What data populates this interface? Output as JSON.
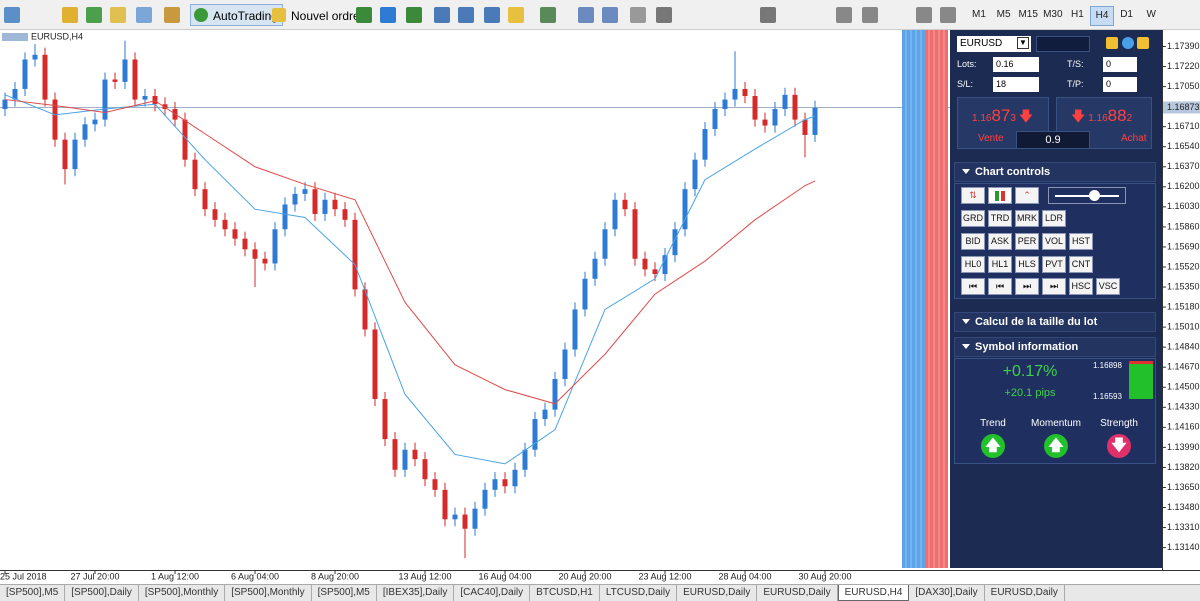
{
  "toolbar": {
    "buttons": [
      "AutoTrading",
      "Nouvel ordre"
    ],
    "timeframes": [
      {
        "label": "M1"
      },
      {
        "label": "M5"
      },
      {
        "label": "M15"
      },
      {
        "label": "M30"
      },
      {
        "label": "H1"
      },
      {
        "label": "H4",
        "active": true
      },
      {
        "label": "D1"
      },
      {
        "label": "W"
      }
    ]
  },
  "chart_data": {
    "type": "candlestick",
    "label": "EURUSD,H4",
    "categories": [
      "25 Jul 2018",
      null,
      null,
      null,
      null,
      null,
      null,
      null,
      null,
      "27 Jul 20:00",
      null,
      null,
      null,
      null,
      null,
      null,
      null,
      "1 Aug 12:00",
      null,
      null,
      null,
      null,
      null,
      null,
      null,
      "6 Aug 04:00",
      null,
      null,
      null,
      null,
      null,
      null,
      null,
      "8 Aug 20:00",
      null,
      null,
      null,
      null,
      null,
      null,
      null,
      null,
      "13 Aug 12:00",
      null,
      null,
      null,
      null,
      null,
      null,
      null,
      "16 Aug 04:00",
      null,
      null,
      null,
      null,
      null,
      null,
      null,
      "20 Aug 20:00",
      null,
      null,
      null,
      null,
      null,
      null,
      null,
      "23 Aug 12:00",
      null,
      null,
      null,
      null,
      null,
      null,
      null,
      "28 Aug 04:00",
      null,
      null,
      null,
      null,
      null,
      null,
      null,
      "30 Aug 20:00"
    ],
    "open": [
      1.1686,
      1.1694,
      1.1703,
      1.1728,
      1.1732,
      1.1694,
      1.166,
      1.1635,
      1.166,
      1.1673,
      1.1677,
      1.1711,
      1.1709,
      1.1728,
      1.1694,
      1.1697,
      1.169,
      1.1686,
      1.1677,
      1.1643,
      1.1618,
      1.1601,
      1.1592,
      1.1584,
      1.1576,
      1.1567,
      1.1559,
      1.1555,
      1.1584,
      1.1605,
      1.1614,
      1.1618,
      1.1597,
      1.1609,
      1.1601,
      1.1592,
      1.1533,
      1.1499,
      1.144,
      1.1406,
      1.138,
      1.1397,
      1.1389,
      1.1372,
      1.1363,
      1.1338,
      1.1342,
      1.133,
      1.1347,
      1.1363,
      1.1372,
      1.1366,
      1.138,
      1.1397,
      1.1423,
      1.1431,
      1.1457,
      1.1482,
      1.1516,
      1.1542,
      1.1559,
      1.1584,
      1.1609,
      1.1601,
      1.1559,
      1.155,
      1.1546,
      1.1562,
      1.1584,
      1.1618,
      1.1643,
      1.1669,
      1.1686,
      1.1694,
      1.1703,
      1.1697,
      1.1677,
      1.1672,
      1.1686,
      1.1698,
      1.1677,
      1.1664,
      null
    ],
    "high": [
      1.17,
      1.1709,
      1.1734,
      1.1741,
      1.1738,
      1.17,
      1.1666,
      1.1666,
      1.1679,
      1.1683,
      1.1717,
      1.1717,
      1.1744,
      1.1734,
      1.1703,
      1.1703,
      1.1696,
      1.1692,
      1.1683,
      1.1649,
      1.1624,
      1.1607,
      1.1598,
      1.159,
      1.1582,
      1.1573,
      1.1565,
      1.159,
      1.1611,
      1.162,
      1.1624,
      1.1624,
      1.1615,
      1.1615,
      1.1607,
      1.1598,
      1.1539,
      1.1505,
      1.1446,
      1.1412,
      1.1403,
      1.1403,
      1.1395,
      1.1378,
      1.1369,
      1.1348,
      1.1348,
      1.1353,
      1.1369,
      1.1378,
      1.1378,
      1.1386,
      1.1403,
      1.1429,
      1.1437,
      1.1463,
      1.1488,
      1.1522,
      1.1548,
      1.1565,
      1.159,
      1.1615,
      1.1615,
      1.1607,
      1.1565,
      1.1556,
      1.1568,
      1.159,
      1.1624,
      1.1649,
      1.1675,
      1.1692,
      1.17,
      1.1735,
      1.1709,
      1.1703,
      1.1683,
      1.1692,
      1.1704,
      1.1704,
      1.1683,
      1.1693,
      null
    ],
    "low": [
      1.168,
      1.1688,
      1.1697,
      1.1722,
      1.1688,
      1.1654,
      1.1622,
      1.1629,
      1.1654,
      1.1667,
      1.1671,
      1.1703,
      1.1703,
      1.1688,
      1.1688,
      1.1684,
      1.168,
      1.1671,
      1.1637,
      1.1612,
      1.1595,
      1.1586,
      1.1578,
      1.157,
      1.1561,
      1.1535,
      1.1549,
      1.1549,
      1.1578,
      1.1599,
      1.1608,
      1.1591,
      1.1591,
      1.1595,
      1.1586,
      1.1527,
      1.1493,
      1.1434,
      1.14,
      1.1374,
      1.1374,
      1.1383,
      1.1366,
      1.1357,
      1.1332,
      1.1332,
      1.1305,
      1.1324,
      1.1341,
      1.1357,
      1.136,
      1.136,
      1.1374,
      1.1391,
      1.1417,
      1.1425,
      1.1451,
      1.1476,
      1.151,
      1.1536,
      1.1553,
      1.1578,
      1.1595,
      1.1553,
      1.1544,
      1.154,
      1.154,
      1.1556,
      1.1578,
      1.1612,
      1.1637,
      1.1663,
      1.168,
      1.1688,
      1.1691,
      1.1671,
      1.1666,
      1.1666,
      1.168,
      1.1671,
      1.1645,
      1.1658,
      null
    ],
    "close": [
      1.1694,
      1.1703,
      1.1728,
      1.1732,
      1.1694,
      1.166,
      1.1635,
      1.166,
      1.1673,
      1.1677,
      1.1711,
      1.1709,
      1.1728,
      1.1694,
      1.1697,
      1.169,
      1.1686,
      1.1677,
      1.1643,
      1.1618,
      1.1601,
      1.1592,
      1.1584,
      1.1576,
      1.1567,
      1.1559,
      1.1555,
      1.1584,
      1.1605,
      1.1614,
      1.1618,
      1.1597,
      1.1609,
      1.1601,
      1.1592,
      1.1533,
      1.1499,
      1.144,
      1.1406,
      1.138,
      1.1397,
      1.1389,
      1.1372,
      1.1363,
      1.1338,
      1.1342,
      1.133,
      1.1347,
      1.1363,
      1.1372,
      1.1366,
      1.138,
      1.1397,
      1.1423,
      1.1431,
      1.1457,
      1.1482,
      1.1516,
      1.1542,
      1.1559,
      1.1584,
      1.1609,
      1.1601,
      1.1559,
      1.155,
      1.1546,
      1.1562,
      1.1584,
      1.1618,
      1.1643,
      1.1669,
      1.1686,
      1.1694,
      1.1703,
      1.1697,
      1.1677,
      1.1672,
      1.1686,
      1.1698,
      1.1677,
      1.1664,
      1.1687,
      null
    ],
    "up_color": "#2e7bd4",
    "down_color": "#d42a2a",
    "series": [
      {
        "color": "#4aa3e6",
        "x": [
          0,
          5,
          10,
          15,
          20,
          25,
          30,
          35,
          40,
          45,
          50,
          55,
          60,
          65,
          70,
          75,
          80,
          81
        ],
        "values": [
          1.1698,
          1.1681,
          1.1686,
          1.169,
          1.1643,
          1.1601,
          1.1594,
          1.1554,
          1.1444,
          1.1393,
          1.1385,
          1.1414,
          1.1516,
          1.1542,
          1.1626,
          1.1652,
          1.1677,
          1.168
        ]
      },
      {
        "color": "#e04a4a",
        "x": [
          0,
          5,
          10,
          15,
          20,
          25,
          30,
          35,
          40,
          45,
          50,
          55,
          60,
          65,
          70,
          75,
          80,
          81
        ],
        "values": [
          1.1694,
          1.1689,
          1.1683,
          1.1693,
          1.1665,
          1.1637,
          1.1622,
          1.1609,
          1.1522,
          1.1469,
          1.1448,
          1.1436,
          1.1478,
          1.1529,
          1.1557,
          1.1592,
          1.1621,
          1.1625
        ]
      }
    ],
    "ylim": [
      1.1295,
      1.1753
    ],
    "yticks": [
      {
        "value": 1.1739,
        "label": "1.17390"
      },
      {
        "value": 1.1722,
        "label": "1.17220"
      },
      {
        "value": 1.1705,
        "label": "1.17050"
      },
      {
        "value": 1.1671,
        "label": "1.16710"
      },
      {
        "value": 1.1654,
        "label": "1.16540"
      },
      {
        "value": 1.1637,
        "label": "1.16370"
      },
      {
        "value": 1.162,
        "label": "1.16200"
      },
      {
        "value": 1.1603,
        "label": "1.16030"
      },
      {
        "value": 1.1586,
        "label": "1.15860"
      },
      {
        "value": 1.1569,
        "label": "1.15690"
      },
      {
        "value": 1.1552,
        "label": "1.15520"
      },
      {
        "value": 1.1535,
        "label": "1.15350"
      },
      {
        "value": 1.1518,
        "label": "1.15180"
      },
      {
        "value": 1.1501,
        "label": "1.15010"
      },
      {
        "value": 1.1484,
        "label": "1.14840"
      },
      {
        "value": 1.1467,
        "label": "1.14670"
      },
      {
        "value": 1.145,
        "label": "1.14500"
      },
      {
        "value": 1.1433,
        "label": "1.14330"
      },
      {
        "value": 1.1416,
        "label": "1.14160"
      },
      {
        "value": 1.1399,
        "label": "1.13990"
      },
      {
        "value": 1.1382,
        "label": "1.13820"
      },
      {
        "value": 1.1365,
        "label": "1.13650"
      },
      {
        "value": 1.1348,
        "label": "1.13480"
      },
      {
        "value": 1.1331,
        "label": "1.13310"
      },
      {
        "value": 1.1314,
        "label": "1.13140"
      }
    ],
    "current_price": {
      "value": 1.16873,
      "label": "1.16873"
    }
  },
  "side_panel": {
    "symbol": "EURUSD",
    "fields": [
      {
        "label": "Lots:",
        "value": "0.16"
      },
      {
        "label": "T/S:",
        "value": "0"
      },
      {
        "label": "S/L:",
        "value": "18"
      },
      {
        "label": "T/P:",
        "value": "0"
      }
    ],
    "sell": {
      "prefix": "1.16",
      "big": "87",
      "small": "3",
      "label": "Vente"
    },
    "buy": {
      "prefix": "1.16",
      "big": "88",
      "small": "2",
      "label": "Achat"
    },
    "spread": "0.9",
    "sections": [
      "Chart controls",
      "Calcul de la taille du lot",
      "Symbol information"
    ],
    "control_rows": [
      [
        "GRD",
        "TRD",
        "MRK",
        "LDR"
      ],
      [
        "BID",
        "ASK",
        "PER",
        "VOL",
        "HST"
      ],
      [
        "HL0",
        "HL1",
        "HLS",
        "PVT",
        "CNT"
      ],
      [
        "HSC",
        "VSC"
      ]
    ],
    "change": "+0.17%",
    "pips": "+20.1 pips",
    "range_high": "1.16898",
    "range_low": "1.16593",
    "indicators": [
      {
        "label": "Trend",
        "direction": "up"
      },
      {
        "label": "Momentum",
        "direction": "up"
      },
      {
        "label": "Strength",
        "direction": "down"
      }
    ]
  },
  "tabs": [
    {
      "label": "[SP500],M5"
    },
    {
      "label": "[SP500],Daily"
    },
    {
      "label": "[SP500],Monthly"
    },
    {
      "label": "[SP500],Monthly"
    },
    {
      "label": "[SP500],M5"
    },
    {
      "label": "[IBEX35],Daily"
    },
    {
      "label": "[CAC40],Daily"
    },
    {
      "label": "BTCUSD,H1"
    },
    {
      "label": "LTCUSD,Daily"
    },
    {
      "label": "EURUSD,Daily"
    },
    {
      "label": "EURUSD,Daily"
    },
    {
      "label": "EURUSD,H4",
      "active": true
    },
    {
      "label": "[DAX30],Daily"
    },
    {
      "label": "EURUSD,Daily"
    }
  ]
}
